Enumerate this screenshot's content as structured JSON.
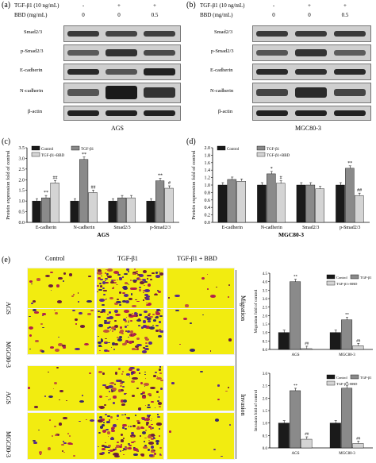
{
  "panel_a": {
    "label": "(a)",
    "tgf_header": "TGF-β1 (10 ng/mL)",
    "bbd_header": "BBD (mg/mL)",
    "tgf_values": [
      "-",
      "+",
      "+"
    ],
    "bbd_values": [
      "0",
      "0",
      "0.5"
    ],
    "rows": [
      "Smad2/3",
      "p-Smad2/3",
      "E-cadherin",
      "N-cadherin",
      "β-actin"
    ],
    "cell_line": "AGS"
  },
  "panel_b": {
    "label": "(b)",
    "tgf_header": "TGF-β1 (10 ng/mL)",
    "bbd_header": "BBD (mg/mL)",
    "tgf_values": [
      "-",
      "+",
      "+"
    ],
    "bbd_values": [
      "0",
      "0",
      "0.5"
    ],
    "rows": [
      "Smad2/3",
      "p-Smad2/3",
      "E-cadherin",
      "N-cadherin",
      "β-actin"
    ],
    "cell_line": "MGC80-3"
  },
  "panel_c_label": "(c)",
  "panel_d_label": "(d)",
  "panel_e": {
    "label": "(e)",
    "col_headers": [
      "Control",
      "TGF-β1",
      "TGF-β1 + BBD"
    ],
    "row_labels": [
      "AGS",
      "MGC80-3",
      "AGS",
      "MGC80-3"
    ],
    "section_labels": [
      "Migration",
      "Invasion"
    ]
  },
  "colors": {
    "control": "#1a1a1a",
    "tgf": "#8a8a8a",
    "tgf_bbd": "#d4d4d4",
    "stain_bg": "#f2ec10"
  },
  "chart_data": [
    {
      "id": "c",
      "type": "bar",
      "xlabel": "AGS",
      "ylabel": "Protein expression fold of control",
      "ylim": [
        0,
        3.5
      ],
      "yticks": [
        "0.0",
        "0.5",
        "1.0",
        "1.5",
        "2.0",
        "2.5",
        "3.0",
        "3.5"
      ],
      "categories": [
        "E-cadherin",
        "N-cadherin",
        "Smad2/3",
        "p-Smad2/3"
      ],
      "series": [
        {
          "name": "Control",
          "values": [
            1.0,
            1.0,
            1.0,
            1.0
          ]
        },
        {
          "name": "TGF-β1",
          "values": [
            1.15,
            2.95,
            1.15,
            1.95
          ]
        },
        {
          "name": "TGF-β1+BBD",
          "values": [
            1.85,
            1.4,
            1.15,
            1.6
          ]
        }
      ],
      "annotations": [
        {
          "category": 0,
          "series": 1,
          "text": "**"
        },
        {
          "category": 0,
          "series": 2,
          "text": "##"
        },
        {
          "category": 1,
          "series": 1,
          "text": "**"
        },
        {
          "category": 1,
          "series": 2,
          "text": "##"
        },
        {
          "category": 3,
          "series": 1,
          "text": "**"
        },
        {
          "category": 3,
          "series": 2,
          "text": "#"
        }
      ],
      "legend": "top-left"
    },
    {
      "id": "d",
      "type": "bar",
      "xlabel": "MGC80-3",
      "ylabel": "Protein expression fold of control",
      "ylim": [
        0,
        2.0
      ],
      "yticks": [
        "0.0",
        "0.2",
        "0.4",
        "0.6",
        "0.8",
        "1.0",
        "1.2",
        "1.4",
        "1.6",
        "1.8",
        "2.0"
      ],
      "categories": [
        "E-cadherin",
        "N-cadherin",
        "Smad2/3",
        "p-Smad2/3"
      ],
      "series": [
        {
          "name": "Control",
          "values": [
            1.0,
            1.0,
            1.0,
            1.0
          ]
        },
        {
          "name": "TGF-β1",
          "values": [
            1.15,
            1.3,
            1.0,
            1.45
          ]
        },
        {
          "name": "TGF-β1+BBD",
          "values": [
            1.1,
            1.05,
            0.9,
            0.72
          ]
        }
      ],
      "annotations": [
        {
          "category": 1,
          "series": 1,
          "text": "*"
        },
        {
          "category": 1,
          "series": 2,
          "text": "#"
        },
        {
          "category": 3,
          "series": 1,
          "text": "**"
        },
        {
          "category": 3,
          "series": 2,
          "text": "##"
        }
      ],
      "legend": "top-left"
    },
    {
      "id": "e-migration",
      "type": "bar",
      "ylabel": "Migration fold of control",
      "ylim": [
        0,
        4.5
      ],
      "yticks": [
        "0.0",
        "0.5",
        "1.0",
        "1.5",
        "2.0",
        "2.5",
        "3.0",
        "3.5",
        "4.0",
        "4.5"
      ],
      "categories": [
        "AGS",
        "MGC80-3"
      ],
      "series": [
        {
          "name": "Control",
          "values": [
            1.0,
            1.0
          ]
        },
        {
          "name": "TGF-β1",
          "values": [
            4.0,
            1.75
          ]
        },
        {
          "name": "TGF-β1+BBD",
          "values": [
            0.05,
            0.22
          ]
        }
      ],
      "annotations": [
        {
          "category": 0,
          "series": 1,
          "text": "**"
        },
        {
          "category": 0,
          "series": 2,
          "text": "##"
        },
        {
          "category": 1,
          "series": 1,
          "text": "**"
        },
        {
          "category": 1,
          "series": 2,
          "text": "##"
        }
      ],
      "legend": "top-right"
    },
    {
      "id": "e-invasion",
      "type": "bar",
      "ylabel": "Invasion fold of control",
      "ylim": [
        0,
        3.0
      ],
      "yticks": [
        "0.0",
        "0.5",
        "1.0",
        "1.5",
        "2.0",
        "2.5",
        "3.0"
      ],
      "categories": [
        "AGS",
        "MGC80-3"
      ],
      "series": [
        {
          "name": "Control",
          "values": [
            1.0,
            1.0
          ]
        },
        {
          "name": "TGF-β1",
          "values": [
            2.3,
            2.4
          ]
        },
        {
          "name": "TGF-β1+BBD",
          "values": [
            0.35,
            0.18
          ]
        }
      ],
      "annotations": [
        {
          "category": 0,
          "series": 1,
          "text": "**"
        },
        {
          "category": 0,
          "series": 2,
          "text": "##"
        },
        {
          "category": 1,
          "series": 1,
          "text": "*"
        },
        {
          "category": 1,
          "series": 2,
          "text": "##"
        }
      ],
      "legend": "top-right"
    }
  ]
}
